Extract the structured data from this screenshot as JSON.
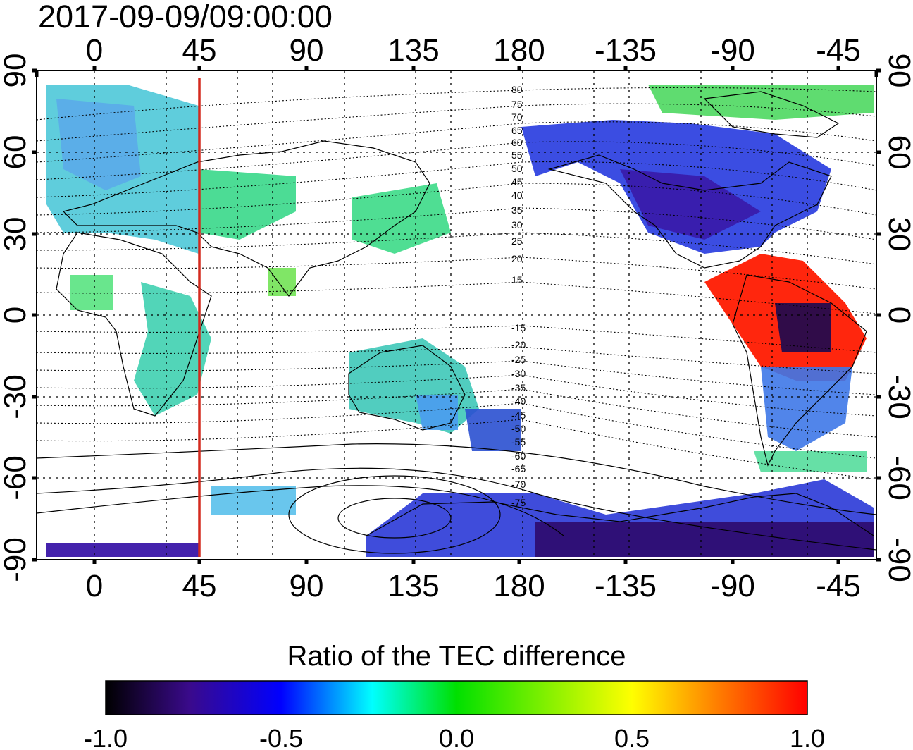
{
  "header": {
    "timestamp": "2017-09-09/09:00:00"
  },
  "map": {
    "lon_ticks": [
      0,
      45,
      90,
      135,
      180,
      -135,
      -90,
      -45
    ],
    "lon_tick_labels": [
      "0",
      "45",
      "90",
      "135",
      "180",
      "-135",
      "-90",
      "-45"
    ],
    "lat_ticks": [
      90,
      60,
      30,
      0,
      -30,
      -60,
      -90
    ],
    "lat_tick_labels": [
      "90",
      "60",
      "30",
      "0",
      "-30",
      "-60",
      "-90"
    ],
    "meridian_marker_lon": 45,
    "meridian_marker_color": "#d42a1e",
    "contour_labels": [
      "80",
      "75",
      "70",
      "65",
      "60",
      "55",
      "50",
      "45",
      "40",
      "35",
      "30",
      "25",
      "20",
      "15",
      "-15",
      "-20",
      "-25",
      "-30",
      "-35",
      "-40",
      "-45",
      "-50",
      "-55",
      "-60",
      "-65",
      "-70",
      "-75"
    ]
  },
  "colorbar": {
    "title": "Ratio of the TEC difference",
    "min": -1.0,
    "max": 1.0,
    "tick_labels": [
      "-1.0",
      "-0.5",
      "0.0",
      "0.5",
      "1.0"
    ],
    "stops": [
      "#000000",
      "#3a0a8c",
      "#0000ff",
      "#00ffff",
      "#00e000",
      "#ffff00",
      "#ff8000",
      "#ff0000"
    ]
  }
}
